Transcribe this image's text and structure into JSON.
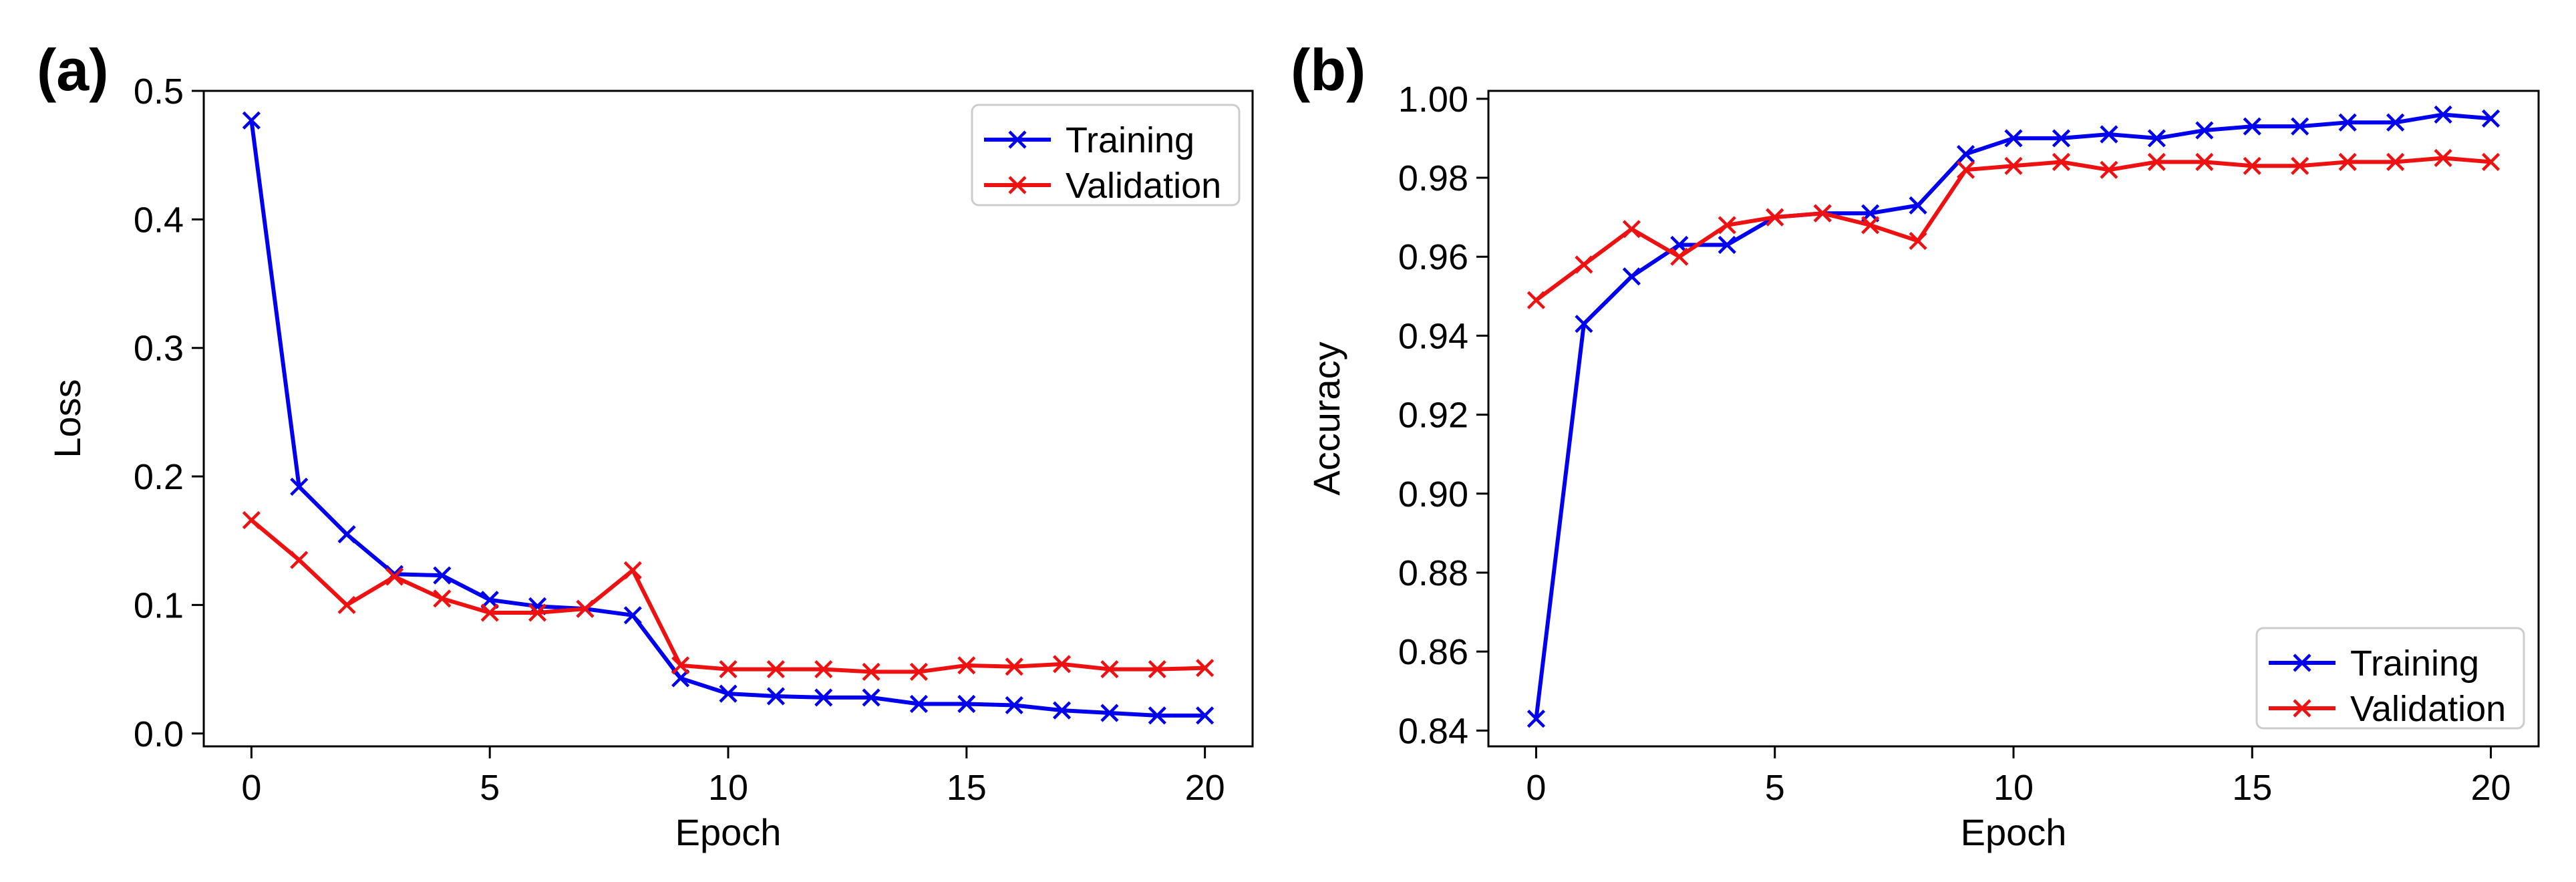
{
  "chart_data": [
    {
      "panel_label": "(a)",
      "type": "line",
      "xlabel": "Epoch",
      "ylabel": "Loss",
      "xlim": [
        -1,
        21
      ],
      "ylim": [
        -0.01,
        0.5
      ],
      "x_ticks": [
        0,
        5,
        10,
        15,
        20
      ],
      "x_tick_labels": [
        "0",
        "5",
        "10",
        "15",
        "20"
      ],
      "y_ticks": [
        0.0,
        0.1,
        0.2,
        0.3,
        0.4,
        0.5
      ],
      "y_tick_labels": [
        "0.0",
        "0.1",
        "0.2",
        "0.3",
        "0.4",
        "0.5"
      ],
      "grid": false,
      "legend_position": "top-right",
      "x": [
        0,
        1,
        2,
        3,
        4,
        5,
        6,
        7,
        8,
        9,
        10,
        11,
        12,
        13,
        14,
        15,
        16,
        17,
        18,
        19,
        20
      ],
      "series": [
        {
          "name": "Training",
          "color": "#0000ee",
          "marker": "x",
          "values": [
            0.477,
            0.192,
            0.155,
            0.124,
            0.123,
            0.104,
            0.099,
            0.097,
            0.092,
            0.043,
            0.031,
            0.029,
            0.028,
            0.028,
            0.023,
            0.023,
            0.022,
            0.018,
            0.016,
            0.014,
            0.014
          ]
        },
        {
          "name": "Validation",
          "color": "#ee1111",
          "marker": "x",
          "values": [
            0.166,
            0.135,
            0.1,
            0.122,
            0.105,
            0.094,
            0.094,
            0.097,
            0.127,
            0.053,
            0.05,
            0.05,
            0.05,
            0.048,
            0.048,
            0.053,
            0.052,
            0.054,
            0.05,
            0.05,
            0.051
          ]
        }
      ]
    },
    {
      "panel_label": "(b)",
      "type": "line",
      "xlabel": "Epoch",
      "ylabel": "Accuracy",
      "xlim": [
        -1,
        21
      ],
      "ylim": [
        0.836,
        1.002
      ],
      "x_ticks": [
        0,
        5,
        10,
        15,
        20
      ],
      "x_tick_labels": [
        "0",
        "5",
        "10",
        "15",
        "20"
      ],
      "y_ticks": [
        0.84,
        0.86,
        0.88,
        0.9,
        0.92,
        0.94,
        0.96,
        0.98,
        1.0
      ],
      "y_tick_labels": [
        "0.84",
        "0.86",
        "0.88",
        "0.90",
        "0.92",
        "0.94",
        "0.96",
        "0.98",
        "1.00"
      ],
      "grid": false,
      "legend_position": "bottom-right",
      "x": [
        0,
        1,
        2,
        3,
        4,
        5,
        6,
        7,
        8,
        9,
        10,
        11,
        12,
        13,
        14,
        15,
        16,
        17,
        18,
        19,
        20
      ],
      "series": [
        {
          "name": "Training",
          "color": "#0000ee",
          "marker": "x",
          "values": [
            0.843,
            0.943,
            0.955,
            0.963,
            0.963,
            0.97,
            0.971,
            0.971,
            0.973,
            0.986,
            0.99,
            0.99,
            0.991,
            0.99,
            0.992,
            0.993,
            0.993,
            0.994,
            0.994,
            0.996,
            0.995
          ]
        },
        {
          "name": "Validation",
          "color": "#ee1111",
          "marker": "x",
          "values": [
            0.949,
            0.958,
            0.967,
            0.96,
            0.968,
            0.97,
            0.971,
            0.968,
            0.964,
            0.982,
            0.983,
            0.984,
            0.982,
            0.984,
            0.984,
            0.983,
            0.983,
            0.984,
            0.984,
            0.985,
            0.984
          ]
        }
      ]
    }
  ]
}
